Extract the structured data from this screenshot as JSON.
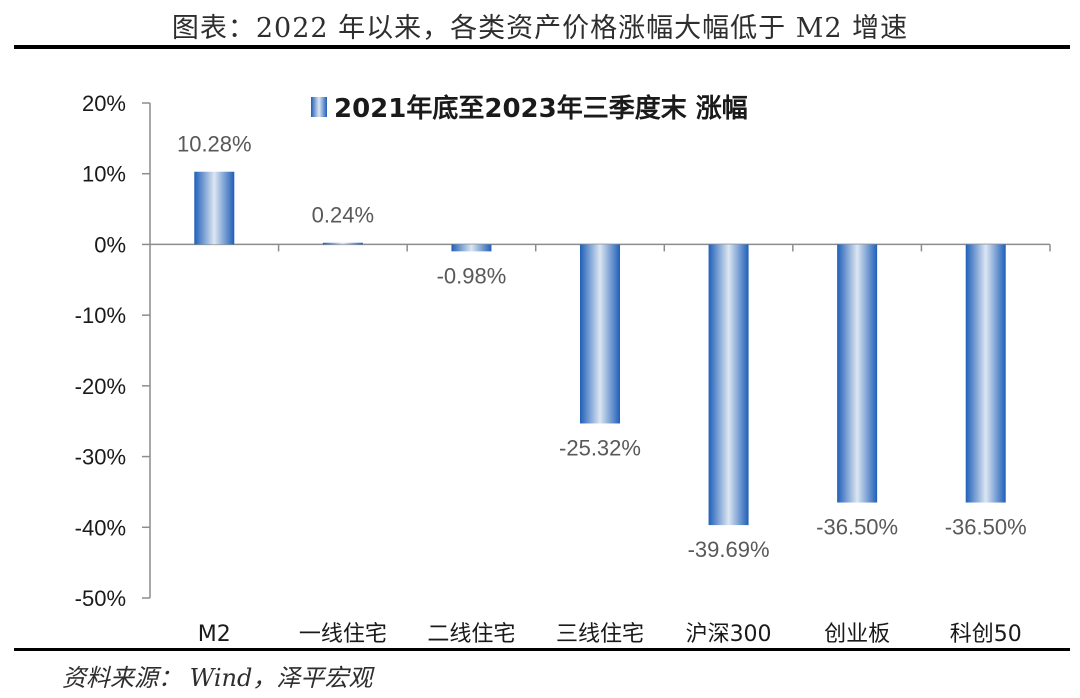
{
  "header": {
    "title": "图表：2022 年以来，各类资产价格涨幅大幅低于 M2 增速"
  },
  "footer": {
    "source": "资料来源：  Wind，泽平宏观"
  },
  "colors": {
    "bar_edge": "#1f5fb8",
    "bar_mid": "#dce6f2",
    "axis": "#8c8c8c"
  },
  "chart_data": {
    "type": "bar",
    "title": "2021年底至2023年三季度末 涨幅",
    "legend": "2021年底至2023年三季度末 涨幅",
    "categories": [
      "M2",
      "一线住宅",
      "二线住宅",
      "三线住宅",
      "沪深300",
      "创业板",
      "科创50"
    ],
    "values": [
      10.28,
      0.24,
      -0.98,
      -25.32,
      -39.69,
      -36.5,
      -36.5
    ],
    "data_labels": [
      "10.28%",
      "0.24%",
      "-0.98%",
      "-25.32%",
      "-39.69%",
      "-36.50%",
      "-36.50%"
    ],
    "y_ticks": [
      20,
      10,
      0,
      -10,
      -20,
      -30,
      -40,
      -50
    ],
    "y_tick_labels": [
      "20%",
      "10%",
      "0%",
      "-10%",
      "-20%",
      "-30%",
      "-40%",
      "-50%"
    ],
    "ylim": [
      -50,
      20
    ],
    "xlabel": "",
    "ylabel": ""
  }
}
